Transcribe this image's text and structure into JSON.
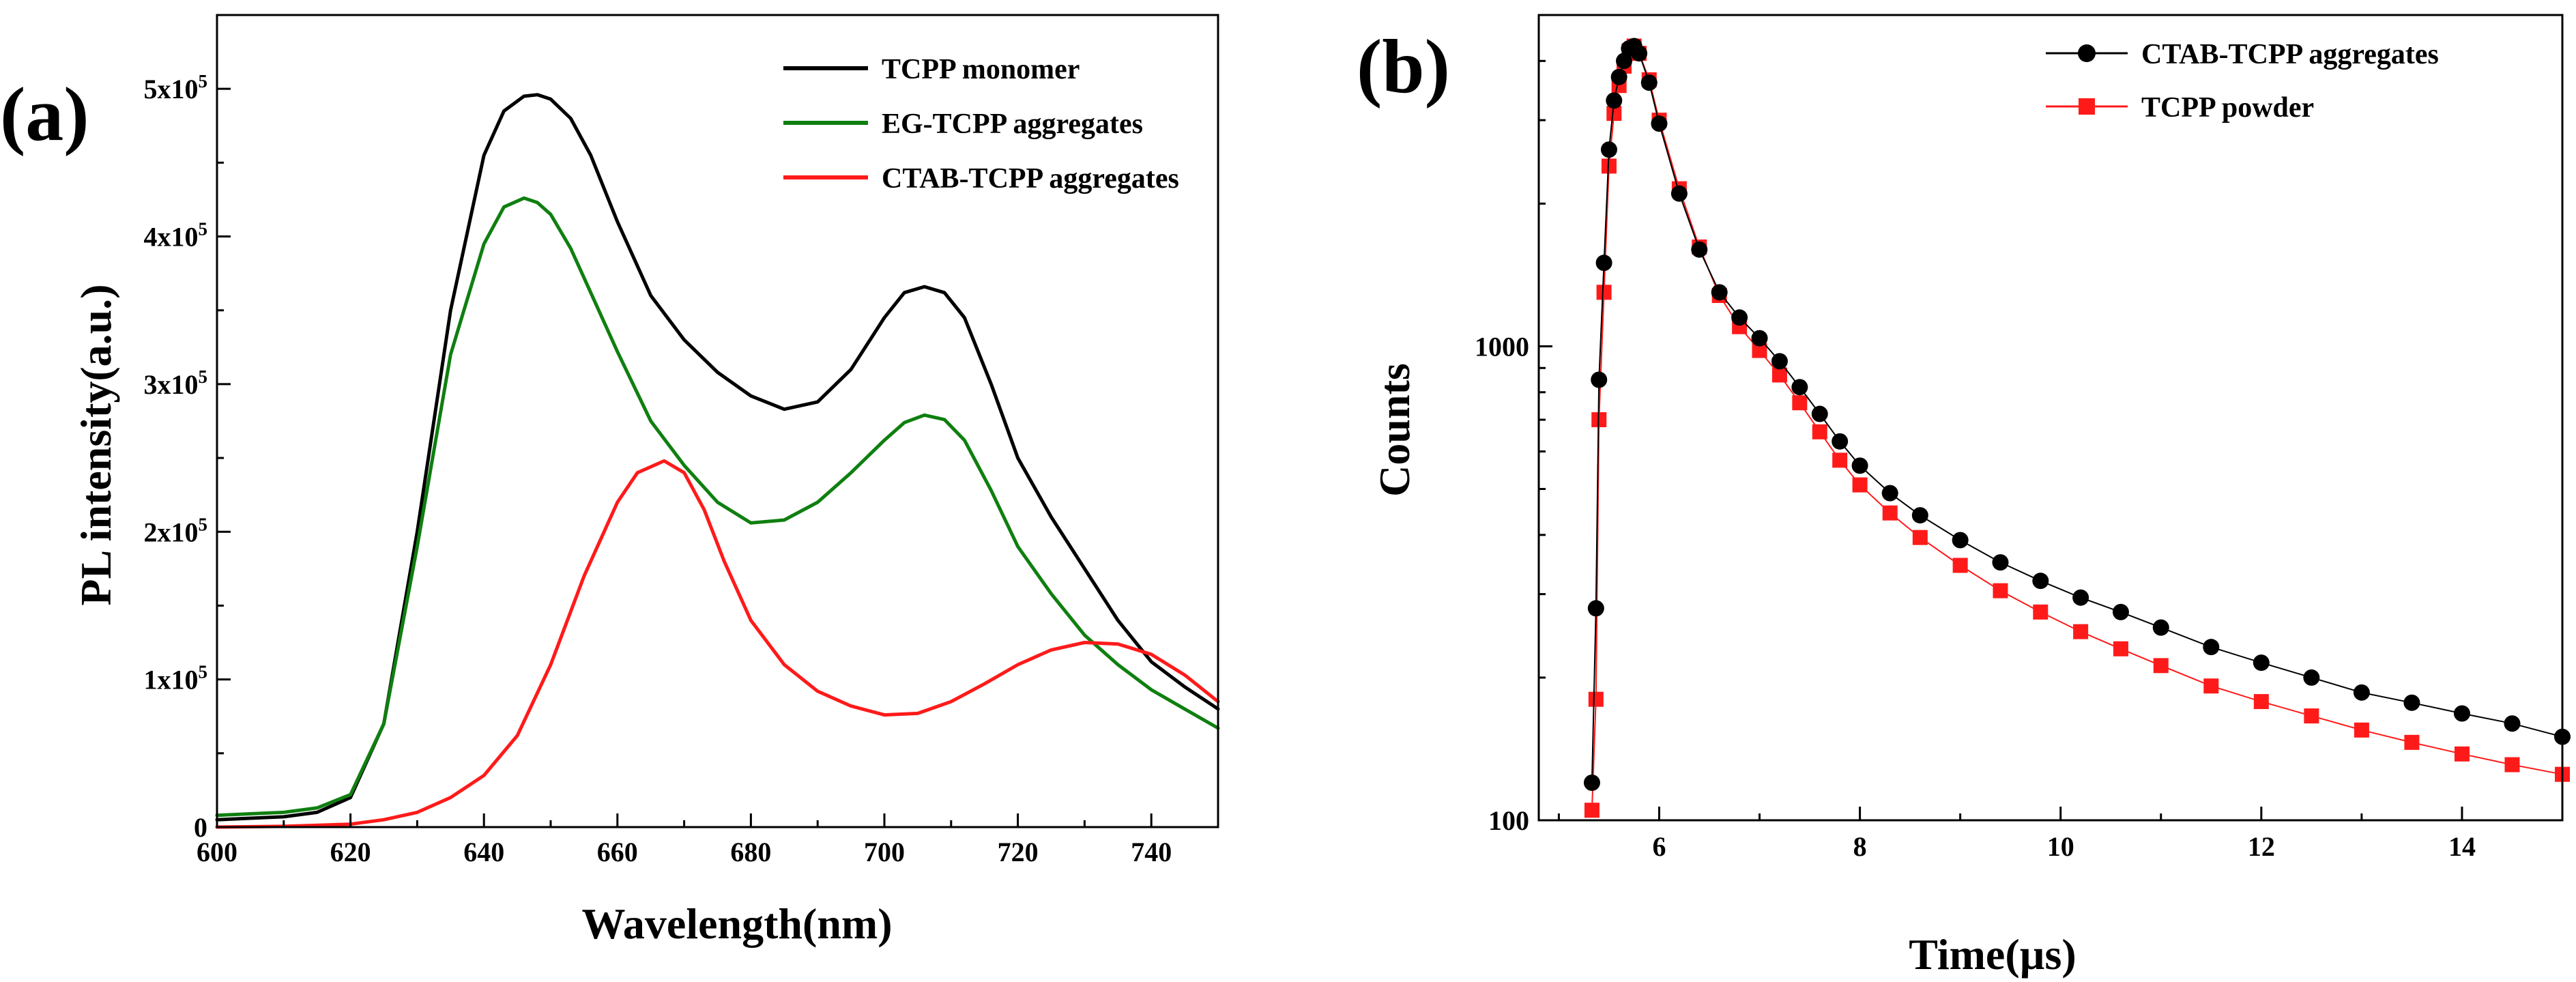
{
  "figure": {
    "panel_a_label": "(a)",
    "panel_b_label": "(b)"
  },
  "chart_data": [
    {
      "panel": "(a)",
      "type": "line",
      "title": "",
      "xlabel": "Wavelength(nm)",
      "ylabel": "PL intensity(a.u.)",
      "xlim": [
        600,
        750
      ],
      "ylim": [
        0,
        550000
      ],
      "grid": false,
      "legend_position": "top-right",
      "x_ticks": [
        600,
        620,
        640,
        660,
        680,
        700,
        720,
        740
      ],
      "x_tick_labels": [
        "600",
        "620",
        "640",
        "660",
        "680",
        "700",
        "720",
        "740"
      ],
      "y_ticks": [
        0,
        100000,
        200000,
        300000,
        400000,
        500000
      ],
      "y_tick_labels": [
        {
          "base": "0",
          "exp": ""
        },
        {
          "base": "1x10",
          "exp": "5"
        },
        {
          "base": "2x10",
          "exp": "5"
        },
        {
          "base": "3x10",
          "exp": "5"
        },
        {
          "base": "4x10",
          "exp": "5"
        },
        {
          "base": "5x10",
          "exp": "5"
        }
      ],
      "series": [
        {
          "name": "TCPP monomer",
          "color": "#000000",
          "x": [
            600,
            605,
            610,
            615,
            620,
            625,
            630,
            635,
            640,
            643,
            646,
            648,
            650,
            653,
            656,
            660,
            665,
            670,
            675,
            680,
            685,
            690,
            695,
            700,
            703,
            706,
            709,
            712,
            716,
            720,
            725,
            730,
            735,
            740,
            745,
            750
          ],
          "y": [
            5000,
            6000,
            7000,
            10000,
            20000,
            70000,
            200000,
            350000,
            455000,
            485000,
            495000,
            496000,
            493000,
            480000,
            455000,
            410000,
            360000,
            330000,
            308000,
            292000,
            283000,
            288000,
            310000,
            345000,
            362000,
            366000,
            362000,
            345000,
            300000,
            250000,
            210000,
            175000,
            140000,
            112000,
            95000,
            80000
          ]
        },
        {
          "name": "EG-TCPP aggregates",
          "color": "#0f7f10",
          "x": [
            600,
            605,
            610,
            615,
            620,
            625,
            630,
            635,
            640,
            643,
            646,
            648,
            650,
            653,
            656,
            660,
            665,
            670,
            675,
            680,
            685,
            690,
            695,
            700,
            703,
            706,
            709,
            712,
            716,
            720,
            725,
            730,
            735,
            740,
            745,
            750
          ],
          "y": [
            8000,
            9000,
            10000,
            13000,
            22000,
            70000,
            190000,
            320000,
            395000,
            420000,
            426000,
            423000,
            415000,
            392000,
            362000,
            322000,
            275000,
            245000,
            220000,
            206000,
            208000,
            220000,
            240000,
            262000,
            274000,
            279000,
            276000,
            262000,
            228000,
            190000,
            158000,
            130000,
            110000,
            93000,
            80000,
            67000
          ]
        },
        {
          "name": "CTAB-TCPP aggregates",
          "color": "#ff1a1a",
          "x": [
            600,
            610,
            620,
            625,
            630,
            635,
            640,
            645,
            650,
            655,
            660,
            663,
            667,
            670,
            673,
            676,
            680,
            685,
            690,
            695,
            700,
            705,
            710,
            715,
            720,
            725,
            730,
            735,
            740,
            745,
            750
          ],
          "y": [
            0,
            500,
            2000,
            5000,
            10000,
            20000,
            35000,
            62000,
            110000,
            170000,
            220000,
            240000,
            248000,
            240000,
            215000,
            180000,
            140000,
            110000,
            92000,
            82000,
            76000,
            77000,
            85000,
            97000,
            110000,
            120000,
            125000,
            124000,
            117000,
            103000,
            85000
          ]
        }
      ]
    },
    {
      "panel": "(b)",
      "type": "scatter",
      "title": "",
      "xlabel": "Time(µs)",
      "ylabel": "Counts",
      "xlim": [
        4.8,
        15
      ],
      "ylim": [
        100,
        5000
      ],
      "yscale": "log",
      "grid": false,
      "legend_position": "top-right",
      "x_ticks": [
        6,
        8,
        10,
        12,
        14
      ],
      "x_tick_labels": [
        "6",
        "8",
        "10",
        "12",
        "14"
      ],
      "y_ticks": [
        100,
        1000
      ],
      "y_tick_labels": [
        "100",
        "1000"
      ],
      "series": [
        {
          "name": "CTAB-TCPP aggregates",
          "color": "#000000",
          "marker": "circle",
          "x": [
            5.33,
            5.37,
            5.4,
            5.45,
            5.5,
            5.55,
            5.6,
            5.65,
            5.7,
            5.75,
            5.8,
            5.9,
            6.0,
            6.2,
            6.4,
            6.6,
            6.8,
            7.0,
            7.2,
            7.4,
            7.6,
            7.8,
            8.0,
            8.3,
            8.6,
            9.0,
            9.4,
            9.8,
            10.2,
            10.6,
            11.0,
            11.5,
            12.0,
            12.5,
            13.0,
            13.5,
            14.0,
            14.5,
            15.0
          ],
          "y": [
            120,
            280,
            850,
            1500,
            2600,
            3300,
            3700,
            4000,
            4250,
            4300,
            4150,
            3600,
            2950,
            2100,
            1600,
            1300,
            1150,
            1040,
            930,
            820,
            720,
            630,
            560,
            490,
            440,
            390,
            350,
            320,
            295,
            275,
            255,
            232,
            215,
            200,
            186,
            177,
            168,
            160,
            150
          ]
        },
        {
          "name": "TCPP powder",
          "color": "#ff1a1a",
          "marker": "square",
          "x": [
            5.33,
            5.37,
            5.4,
            5.45,
            5.5,
            5.55,
            5.6,
            5.65,
            5.7,
            5.75,
            5.8,
            5.9,
            6.0,
            6.2,
            6.4,
            6.6,
            6.8,
            7.0,
            7.2,
            7.4,
            7.6,
            7.8,
            8.0,
            8.3,
            8.6,
            9.0,
            9.4,
            9.8,
            10.2,
            10.6,
            11.0,
            11.5,
            12.0,
            12.5,
            13.0,
            13.5,
            14.0,
            14.5,
            15.0
          ],
          "y": [
            105,
            180,
            700,
            1300,
            2400,
            3100,
            3550,
            3900,
            4200,
            4300,
            4150,
            3650,
            3000,
            2150,
            1620,
            1280,
            1100,
            980,
            870,
            760,
            660,
            575,
            510,
            445,
            395,
            345,
            305,
            275,
            250,
            230,
            212,
            192,
            178,
            166,
            155,
            146,
            138,
            131,
            125
          ]
        }
      ]
    }
  ]
}
